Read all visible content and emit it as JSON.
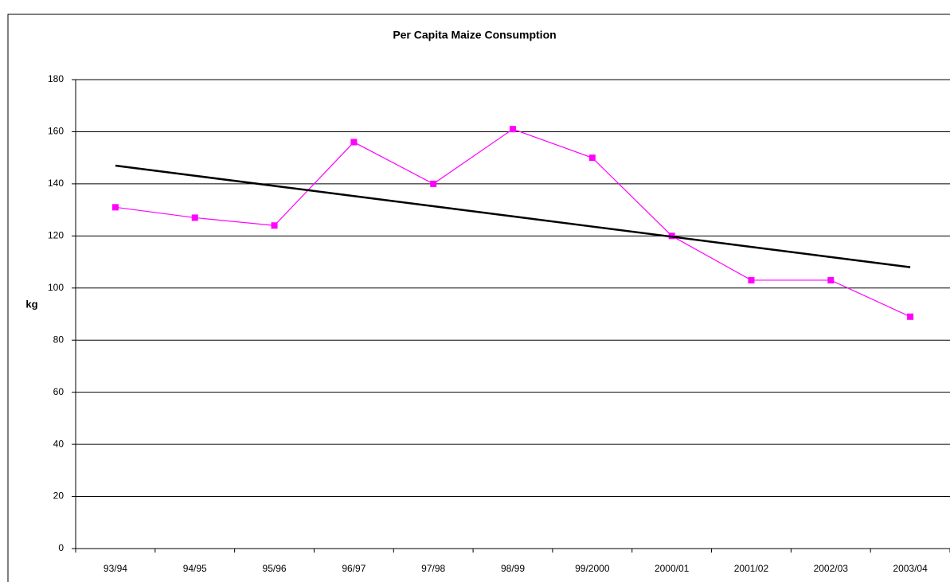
{
  "chart_data": {
    "type": "line",
    "title": "Per Capita Maize Consumption",
    "y_label": "kg",
    "categories": [
      "93/94",
      "94/95",
      "95/96",
      "96/97",
      "97/98",
      "98/99",
      "99/2000",
      "2000/01",
      "2001/02",
      "2002/03",
      "2003/04"
    ],
    "series": [
      {
        "color": "#ff00ff",
        "markers": true,
        "values": [
          131,
          127,
          124,
          156,
          140,
          161,
          150,
          120,
          103,
          103,
          89
        ]
      },
      {
        "color": "#000000",
        "markers": false,
        "values": [
          147,
          143.1,
          139.2,
          135.3,
          131.4,
          127.5,
          123.6,
          119.7,
          115.8,
          111.9,
          108
        ]
      }
    ],
    "ylim": [
      0,
      180
    ],
    "yticks": [
      0,
      20,
      40,
      60,
      80,
      100,
      120,
      140,
      160,
      180
    ],
    "grid": true
  }
}
